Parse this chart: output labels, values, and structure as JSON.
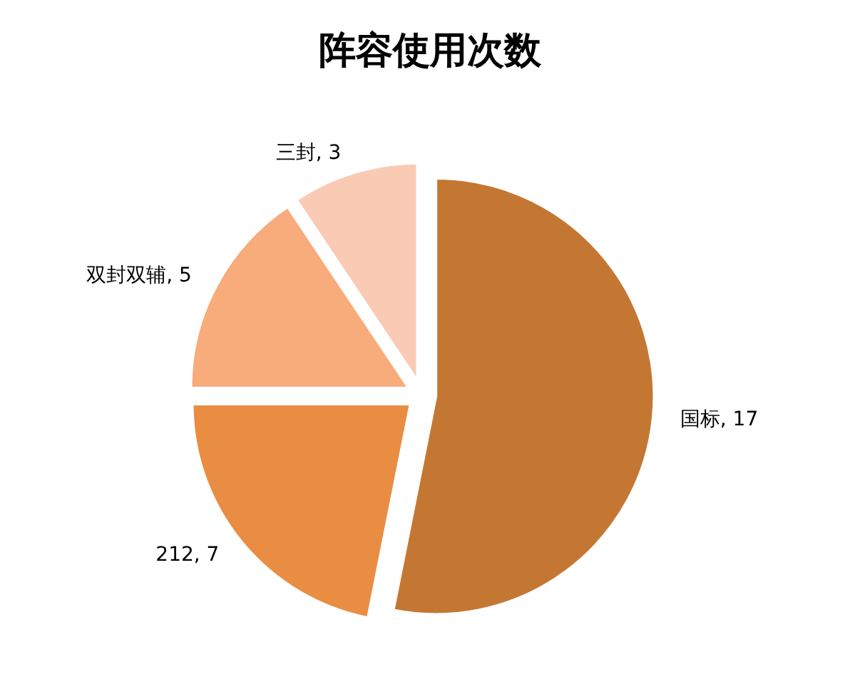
{
  "chart_data": {
    "type": "pie",
    "title": "阵容使用次数",
    "categories": [
      "国标",
      "212",
      "双封双辅",
      "三封"
    ],
    "values": [
      17,
      7,
      5,
      3
    ],
    "value_labels": [
      ", 17",
      ", 7",
      ", 5",
      ", 3"
    ],
    "colors": [
      "#c47733",
      "#e98d42",
      "#f8ab7b",
      "#f9cbb5"
    ],
    "legend": false
  }
}
